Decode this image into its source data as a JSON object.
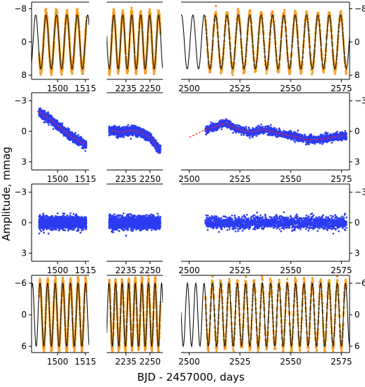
{
  "figure": {
    "ylabel": "Amplitude, mmag",
    "xlabel": "BJD - 2457000, days"
  },
  "colors": {
    "orange": "#f5a02a",
    "black": "#111111",
    "blue": "#2b3bf2",
    "red": "#ff2020"
  },
  "chart_data": [
    {
      "type": "scatter",
      "row": 1,
      "yticks": [
        -8,
        0,
        8
      ],
      "ylim": [
        -9.6,
        9.0
      ],
      "xlim_segments": [
        [
          1486,
          1517
        ],
        [
          2223,
          2258
        ],
        [
          2496,
          2579
        ]
      ],
      "xticks": [
        [
          1500,
          1515
        ],
        [
          2235,
          2250
        ],
        [
          2500,
          2525,
          2550,
          2575
        ]
      ],
      "series": [
        {
          "kind": "observed",
          "color": "orange"
        },
        {
          "kind": "model",
          "color": "black",
          "sinusoid": {
            "amplitude_mmag": 6.5,
            "period_days": 5.6,
            "phase": 0.0
          }
        }
      ]
    },
    {
      "type": "scatter",
      "row": 2,
      "yticks": [
        -3,
        0,
        3
      ],
      "ylim": [
        -3.8,
        3.8
      ],
      "xlim_segments": [
        [
          1486,
          1517
        ],
        [
          2223,
          2258
        ],
        [
          2496,
          2579
        ]
      ],
      "xticks": [
        [
          1500,
          1515
        ],
        [
          2235,
          2250
        ],
        [
          2500,
          2525,
          2550,
          2575
        ]
      ],
      "series": [
        {
          "kind": "residuals",
          "color": "blue"
        },
        {
          "kind": "trend",
          "color": "red",
          "points": [
            [
              1489,
              -2.0
            ],
            [
              1495,
              -1.3
            ],
            [
              1500,
              -0.6
            ],
            [
              1505,
              0.2
            ],
            [
              1510,
              0.8
            ],
            [
              1515,
              1.3
            ],
            [
              2226,
              -0.1
            ],
            [
              2232,
              0.1
            ],
            [
              2238,
              -0.1
            ],
            [
              2244,
              0.1
            ],
            [
              2250,
              0.6
            ],
            [
              2255,
              1.7
            ],
            [
              2500,
              0.6
            ],
            [
              2506,
              0.0
            ],
            [
              2512,
              -0.4
            ],
            [
              2518,
              -0.8
            ],
            [
              2524,
              -0.2
            ],
            [
              2530,
              0.1
            ],
            [
              2536,
              -0.2
            ],
            [
              2540,
              0.0
            ],
            [
              2546,
              0.3
            ],
            [
              2552,
              0.5
            ],
            [
              2558,
              0.8
            ],
            [
              2564,
              0.8
            ],
            [
              2570,
              0.6
            ],
            [
              2576,
              0.4
            ]
          ]
        }
      ]
    },
    {
      "type": "scatter",
      "row": 3,
      "yticks": [
        -3,
        0,
        3
      ],
      "ylim": [
        -3.8,
        3.8
      ],
      "xlim_segments": [
        [
          1486,
          1517
        ],
        [
          2223,
          2258
        ],
        [
          2496,
          2579
        ]
      ],
      "xticks": [
        [
          1500,
          1515
        ],
        [
          2235,
          2250
        ],
        [
          2500,
          2525,
          2550,
          2575
        ]
      ],
      "series": [
        {
          "kind": "residuals",
          "color": "blue",
          "scatter_mmag": 0.6
        }
      ]
    },
    {
      "type": "scatter",
      "row": 4,
      "yticks": [
        -6,
        0,
        6
      ],
      "ylim": [
        -7.5,
        7.2
      ],
      "xlim_segments": [
        [
          1486,
          1517
        ],
        [
          2223,
          2258
        ],
        [
          2496,
          2579
        ]
      ],
      "xticks": [
        [
          1500,
          1515
        ],
        [
          2235,
          2250
        ],
        [
          2500,
          2525,
          2550,
          2575
        ]
      ],
      "series": [
        {
          "kind": "observed",
          "color": "orange"
        },
        {
          "kind": "model",
          "color": "black",
          "sinusoid": {
            "amplitude_mmag": 6.0,
            "period_days": 4.1,
            "phase": 1.3
          }
        }
      ]
    }
  ]
}
